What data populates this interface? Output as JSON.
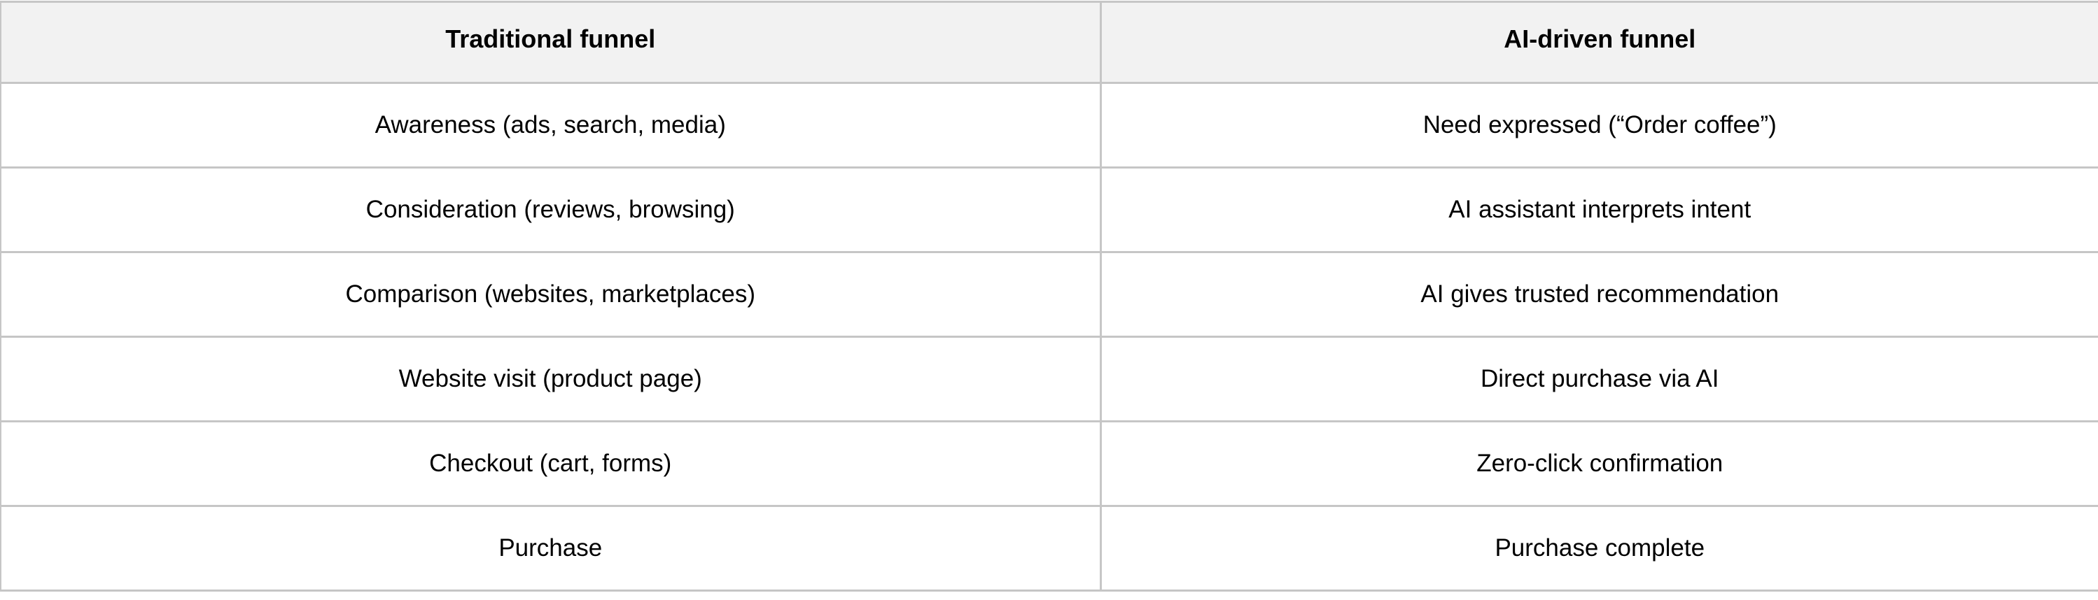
{
  "table": {
    "headers": [
      "Traditional funnel",
      "AI-driven funnel"
    ],
    "rows": [
      [
        "Awareness (ads, search, media)",
        "Need expressed (“Order coffee”)"
      ],
      [
        "Consideration (reviews, browsing)",
        "AI assistant interprets intent"
      ],
      [
        "Comparison (websites, marketplaces)",
        "AI gives trusted recommendation"
      ],
      [
        "Website visit (product page)",
        "Direct purchase via AI"
      ],
      [
        "Checkout (cart, forms)",
        "Zero-click confirmation"
      ],
      [
        "Purchase",
        "Purchase complete"
      ]
    ]
  },
  "colors": {
    "header_bg": "#f2f2f2",
    "border": "#c6c6c6"
  }
}
